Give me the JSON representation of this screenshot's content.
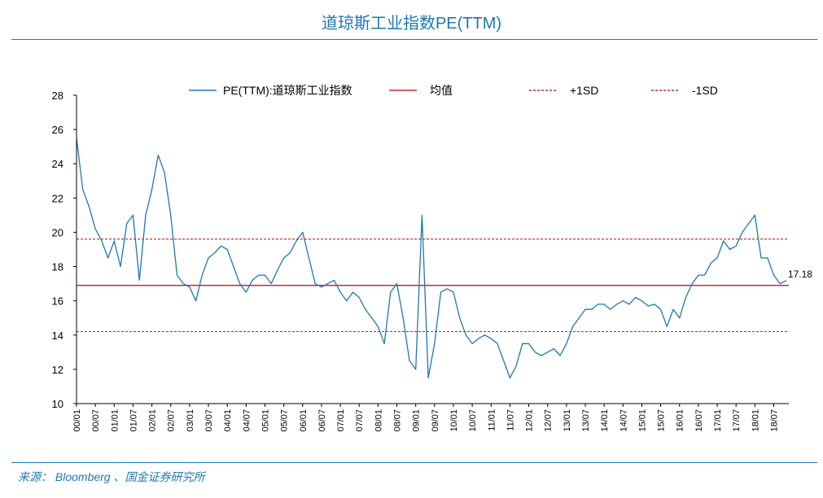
{
  "title": "道琼斯工业指数PE(TTM)",
  "source": "来源： Bloomberg 、国金证券研究所",
  "colors": {
    "accent": "#1f77b4",
    "series": "#1f77b4",
    "mean": "#c00000",
    "sd": "#c00000"
  },
  "chart_data": {
    "type": "line",
    "title": "道琼斯工业指数PE(TTM)",
    "xlabel": "",
    "ylabel": "",
    "ylim": [
      10,
      28
    ],
    "yticks": [
      10,
      12,
      14,
      16,
      18,
      20,
      22,
      24,
      26,
      28
    ],
    "xticks": [
      "00/01",
      "00/07",
      "01/01",
      "01/07",
      "02/01",
      "02/07",
      "03/01",
      "03/07",
      "04/01",
      "04/07",
      "05/01",
      "05/07",
      "06/01",
      "06/07",
      "07/01",
      "07/07",
      "08/01",
      "08/07",
      "09/01",
      "09/07",
      "10/01",
      "10/07",
      "11/01",
      "11/07",
      "12/01",
      "12/07",
      "13/01",
      "13/07",
      "14/01",
      "14/07",
      "15/01",
      "15/07",
      "16/01",
      "16/07",
      "17/01",
      "17/07",
      "18/01",
      "18/07"
    ],
    "grid": false,
    "legend_position": "top",
    "series": [
      {
        "name": "PE(TTM):道琼斯工业指数",
        "style": "solid",
        "x": [
          "00/01",
          "00/03",
          "00/05",
          "00/07",
          "00/09",
          "00/11",
          "01/01",
          "01/03",
          "01/05",
          "01/07",
          "01/09",
          "01/11",
          "02/01",
          "02/03",
          "02/05",
          "02/07",
          "02/09",
          "02/11",
          "03/01",
          "03/03",
          "03/05",
          "03/07",
          "03/09",
          "03/11",
          "04/01",
          "04/03",
          "04/05",
          "04/07",
          "04/09",
          "04/11",
          "05/01",
          "05/03",
          "05/05",
          "05/07",
          "05/09",
          "05/11",
          "06/01",
          "06/03",
          "06/05",
          "06/07",
          "06/09",
          "06/11",
          "07/01",
          "07/03",
          "07/05",
          "07/07",
          "07/09",
          "07/11",
          "08/01",
          "08/03",
          "08/05",
          "08/07",
          "08/09",
          "08/11",
          "09/01",
          "09/03",
          "09/05",
          "09/07",
          "09/09",
          "09/11",
          "10/01",
          "10/03",
          "10/05",
          "10/07",
          "10/09",
          "10/11",
          "11/01",
          "11/03",
          "11/05",
          "11/07",
          "11/09",
          "11/11",
          "12/01",
          "12/03",
          "12/05",
          "12/07",
          "12/09",
          "12/11",
          "13/01",
          "13/03",
          "13/05",
          "13/07",
          "13/09",
          "13/11",
          "14/01",
          "14/03",
          "14/05",
          "14/07",
          "14/09",
          "14/11",
          "15/01",
          "15/03",
          "15/05",
          "15/07",
          "15/09",
          "15/11",
          "16/01",
          "16/03",
          "16/05",
          "16/07",
          "16/09",
          "16/11",
          "17/01",
          "17/03",
          "17/05",
          "17/07",
          "17/09",
          "17/11",
          "18/01",
          "18/03",
          "18/05",
          "18/07",
          "18/09",
          "18/11"
        ],
        "values": [
          25.5,
          22.5,
          21.5,
          20.2,
          19.5,
          18.5,
          19.5,
          18.0,
          20.5,
          21.0,
          17.2,
          21.0,
          22.5,
          24.5,
          23.5,
          21.0,
          17.5,
          17.0,
          16.8,
          16.0,
          17.5,
          18.5,
          18.8,
          19.2,
          19.0,
          18.0,
          17.0,
          16.5,
          17.2,
          17.5,
          17.5,
          17.0,
          17.8,
          18.5,
          18.8,
          19.5,
          20.0,
          18.5,
          17.0,
          16.8,
          17.0,
          17.2,
          16.5,
          16.0,
          16.5,
          16.2,
          15.5,
          15.0,
          14.5,
          13.5,
          16.5,
          17.0,
          15.0,
          12.5,
          12.0,
          21.0,
          11.5,
          13.5,
          16.5,
          16.7,
          16.5,
          15.0,
          14.0,
          13.5,
          13.8,
          14.0,
          13.8,
          13.5,
          12.5,
          11.5,
          12.2,
          13.5,
          13.5,
          13.0,
          12.8,
          13.0,
          13.2,
          12.8,
          13.5,
          14.5,
          15.0,
          15.5,
          15.5,
          15.8,
          15.8,
          15.5,
          15.8,
          16.0,
          15.8,
          16.2,
          16.0,
          15.7,
          15.8,
          15.5,
          14.5,
          15.5,
          15.0,
          16.2,
          17.0,
          17.5,
          17.5,
          18.2,
          18.5,
          19.5,
          19.0,
          19.2,
          20.0,
          20.5,
          21.0,
          18.5,
          18.5,
          17.5,
          17.0,
          17.18
        ]
      },
      {
        "name": "均值",
        "style": "solid",
        "value": 16.9
      },
      {
        "name": "+1SD",
        "style": "dashed",
        "value": 19.6
      },
      {
        "name": "-1SD",
        "style": "dashed",
        "value": 14.2
      }
    ],
    "annotations": [
      {
        "text": "17.18",
        "x": "18/11",
        "y": 17.18
      }
    ]
  }
}
